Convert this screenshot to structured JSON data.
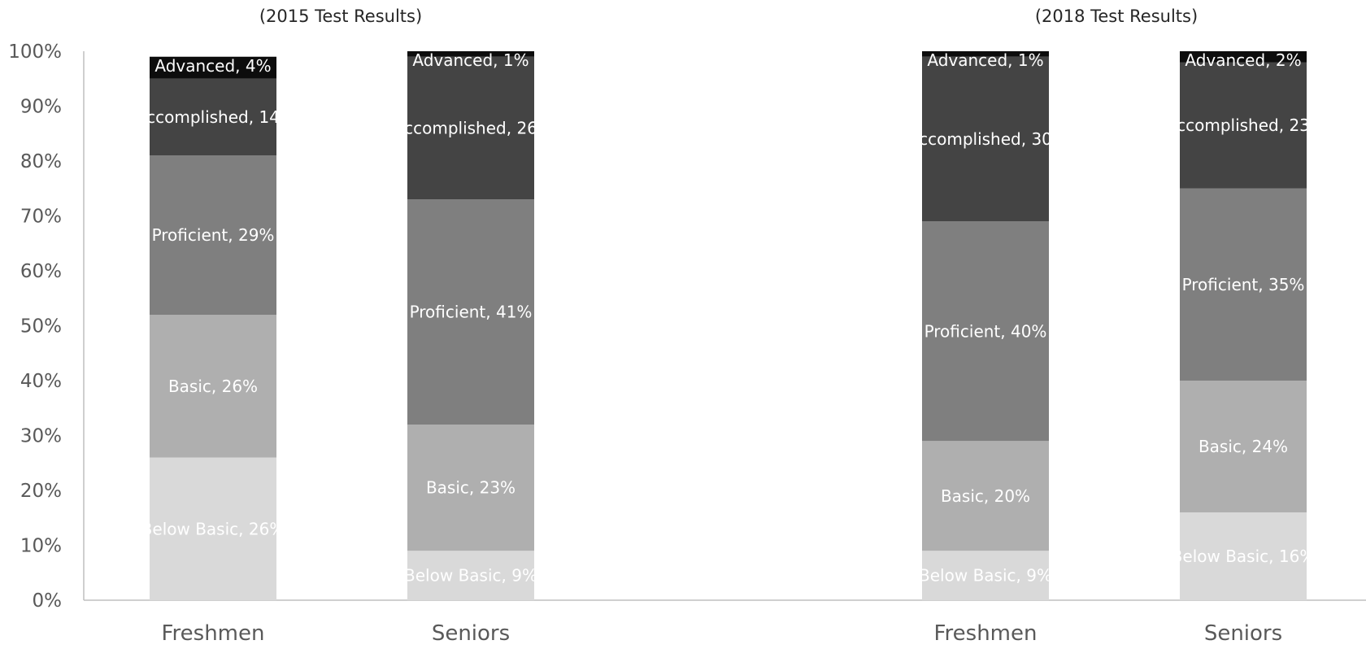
{
  "chart_data": {
    "type": "bar",
    "stacked": true,
    "y_axis": {
      "ylim": [
        0,
        100
      ],
      "tick_labels": [
        "0%",
        "10%",
        "20%",
        "30%",
        "40%",
        "50%",
        "60%",
        "70%",
        "80%",
        "90%",
        "100%"
      ],
      "grid": false
    },
    "groups": [
      {
        "title": "(2015 Test Results)",
        "categories": [
          "Freshmen",
          "Seniors"
        ]
      },
      {
        "title": "(2018 Test Results)",
        "categories": [
          "Freshmen",
          "Seniors"
        ]
      }
    ],
    "series": [
      {
        "name": "Below Basic",
        "color": "#d9d9d9",
        "values": [
          26,
          9,
          9,
          16
        ],
        "labels": [
          "Below Basic, 26%",
          "Below Basic, 9%",
          "Below Basic, 9%",
          "Below Basic, 16%"
        ]
      },
      {
        "name": "Basic",
        "color": "#afafaf",
        "values": [
          26,
          23,
          20,
          24
        ],
        "labels": [
          "Basic, 26%",
          "Basic, 23%",
          "Basic, 20%",
          "Basic, 24%"
        ]
      },
      {
        "name": "Proficient",
        "color": "#7f7f7f",
        "values": [
          29,
          41,
          40,
          35
        ],
        "labels": [
          "Proficient, 29%",
          "Proficient, 41%",
          "Proficient, 40%",
          "Proficient, 35%"
        ]
      },
      {
        "name": "Accomplished",
        "color": "#444444",
        "values": [
          14,
          26,
          30,
          23
        ],
        "labels": [
          "ccomplished, 14",
          "ccomplished, 26",
          "ccomplished, 30",
          "ccomplished, 23"
        ]
      },
      {
        "name": "Advanced",
        "color": "#0d0d0d",
        "values": [
          4,
          1,
          1,
          2
        ],
        "labels": [
          "Advanced, 4%",
          "Advanced, 1%",
          "Advanced, 1%",
          "Advanced, 2%"
        ]
      }
    ]
  }
}
